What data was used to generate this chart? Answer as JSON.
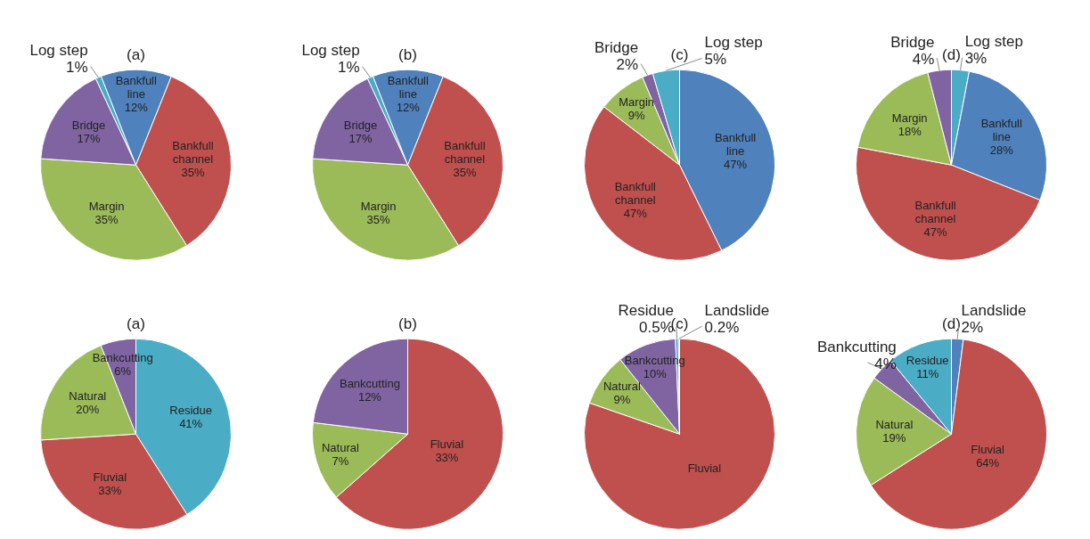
{
  "chart_data": [
    {
      "type": "pie",
      "title": "(a)",
      "categories": [
        "Log step",
        "Bankfull line",
        "Bankfull channel",
        "Margin",
        "Bridge"
      ],
      "values": [
        1,
        12,
        35,
        35,
        17
      ],
      "value_labels": [
        "1%",
        "12%",
        "35%",
        "35%",
        "17%"
      ],
      "colors": [
        "#4bacc6",
        "#4f81bd",
        "#c0504d",
        "#9bbb59",
        "#8064a2"
      ]
    },
    {
      "type": "pie",
      "title": "(b)",
      "categories": [
        "Log step",
        "Bankfull line",
        "Bankfull channel",
        "Margin",
        "Bridge"
      ],
      "values": [
        1,
        12,
        35,
        35,
        17
      ],
      "value_labels": [
        "1%",
        "12%",
        "35%",
        "35%",
        "17%"
      ],
      "colors": [
        "#4bacc6",
        "#4f81bd",
        "#c0504d",
        "#9bbb59",
        "#8064a2"
      ]
    },
    {
      "type": "pie",
      "title": "(c)",
      "categories": [
        "Bankfull line",
        "Bankfull channel",
        "Margin",
        "Bridge",
        "Log step"
      ],
      "values": [
        47,
        47,
        9,
        2,
        5
      ],
      "value_labels": [
        "47%",
        "47%",
        "9%",
        "2%",
        "5%"
      ],
      "colors": [
        "#4f81bd",
        "#c0504d",
        "#9bbb59",
        "#8064a2",
        "#4bacc6"
      ]
    },
    {
      "type": "pie",
      "title": "(d)",
      "categories": [
        "Log step",
        "Bankfull line",
        "Bankfull channel",
        "Margin",
        "Bridge"
      ],
      "values": [
        3,
        28,
        47,
        18,
        4
      ],
      "value_labels": [
        "3%",
        "28%",
        "47%",
        "18%",
        "4%"
      ],
      "colors": [
        "#4bacc6",
        "#4f81bd",
        "#c0504d",
        "#9bbb59",
        "#8064a2"
      ]
    },
    {
      "type": "pie",
      "title": "(a)",
      "categories": [
        "Residue",
        "Fluvial",
        "Natural",
        "Bankcutting"
      ],
      "values": [
        41,
        33,
        20,
        6
      ],
      "value_labels": [
        "41%",
        "33%",
        "20%",
        "6%"
      ],
      "colors": [
        "#4bacc6",
        "#c0504d",
        "#9bbb59",
        "#8064a2"
      ]
    },
    {
      "type": "pie",
      "title": "(b)",
      "categories": [
        "Fluvial",
        "Natural",
        "Bankcutting"
      ],
      "values": [
        33,
        7,
        12
      ],
      "value_labels": [
        "33%",
        "7%",
        "12%"
      ],
      "colors": [
        "#c0504d",
        "#9bbb59",
        "#8064a2"
      ]
    },
    {
      "type": "pie",
      "title": "(c)",
      "categories": [
        "Fluvial",
        "Natural",
        "Bankcutting",
        "Residue",
        "Landslide"
      ],
      "values": [
        80.3,
        9,
        10,
        0.5,
        0.2
      ],
      "value_labels": [
        null,
        "9%",
        "10%",
        "0.5%",
        "0.2%"
      ],
      "colors": [
        "#c0504d",
        "#9bbb59",
        "#8064a2",
        "#4bacc6",
        "#4f81bd"
      ]
    },
    {
      "type": "pie",
      "title": "(d)",
      "categories": [
        "Landslide",
        "Fluvial",
        "Natural",
        "Bankcutting",
        "Residue"
      ],
      "values": [
        2,
        64,
        19,
        4,
        11
      ],
      "value_labels": [
        "2%",
        "64%",
        "19%",
        "4%",
        "11%"
      ],
      "colors": [
        "#4f81bd",
        "#c0504d",
        "#9bbb59",
        "#8064a2",
        "#4bacc6"
      ]
    }
  ]
}
